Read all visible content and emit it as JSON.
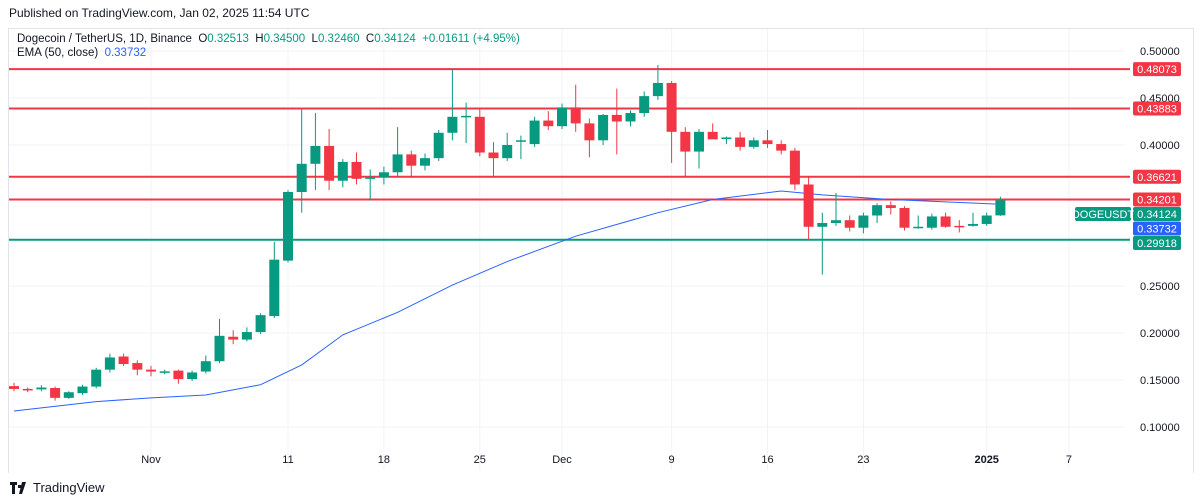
{
  "header": {
    "published": "Published on TradingView.com, Jan 02, 2025 11:54 UTC"
  },
  "legend": {
    "symbol": "Dogecoin / TetherUS, 1D, Binance",
    "o_label": "O",
    "o": "0.32513",
    "h_label": "H",
    "h": "0.34500",
    "l_label": "L",
    "l": "0.32460",
    "c_label": "C",
    "c": "0.34124",
    "change": "+0.01611 (+4.95%)",
    "ema_label": "EMA (50, close)",
    "ema_value": "0.33732"
  },
  "footer": {
    "brand": "TradingView",
    "logo_icon": "tradingview-logo-icon"
  },
  "chart_data": {
    "type": "candlestick",
    "symbol_tag": "DOGEUSDT",
    "colors": {
      "up": "#089981",
      "down": "#f23645",
      "ema": "#2962ff",
      "resistance": "#f23645",
      "support": "#089981"
    },
    "ylim": [
      0.08,
      0.515
    ],
    "y_ticks": [
      "0.50000",
      "0.45000",
      "0.40000",
      "0.25000",
      "0.20000",
      "0.15000",
      "0.10000"
    ],
    "x_ticks": [
      {
        "date": "2024-11-01",
        "label": "Nov"
      },
      {
        "date": "2024-11-11",
        "label": "11"
      },
      {
        "date": "2024-11-18",
        "label": "18"
      },
      {
        "date": "2024-11-25",
        "label": "25"
      },
      {
        "date": "2024-12-01",
        "label": "Dec"
      },
      {
        "date": "2024-12-09",
        "label": "9"
      },
      {
        "date": "2024-12-16",
        "label": "16"
      },
      {
        "date": "2024-12-23",
        "label": "23"
      },
      {
        "date": "2025-01-01",
        "label": "2025"
      },
      {
        "date": "2025-01-07",
        "label": "7"
      }
    ],
    "start_date": "2024-10-22",
    "ohlc": [
      [
        0.1435,
        0.147,
        0.138,
        0.1405
      ],
      [
        0.1405,
        0.142,
        0.137,
        0.1402
      ],
      [
        0.14,
        0.1445,
        0.138,
        0.142
      ],
      [
        0.1415,
        0.143,
        0.128,
        0.131
      ],
      [
        0.131,
        0.138,
        0.13,
        0.137
      ],
      [
        0.136,
        0.145,
        0.134,
        0.143
      ],
      [
        0.143,
        0.163,
        0.141,
        0.161
      ],
      [
        0.161,
        0.178,
        0.158,
        0.174
      ],
      [
        0.175,
        0.178,
        0.165,
        0.167
      ],
      [
        0.168,
        0.171,
        0.155,
        0.161
      ],
      [
        0.161,
        0.165,
        0.154,
        0.159
      ],
      [
        0.159,
        0.161,
        0.156,
        0.1592
      ],
      [
        0.16,
        0.161,
        0.146,
        0.151
      ],
      [
        0.151,
        0.16,
        0.149,
        0.158
      ],
      [
        0.159,
        0.176,
        0.157,
        0.17
      ],
      [
        0.17,
        0.215,
        0.168,
        0.197
      ],
      [
        0.196,
        0.203,
        0.188,
        0.193
      ],
      [
        0.193,
        0.206,
        0.191,
        0.201
      ],
      [
        0.201,
        0.221,
        0.199,
        0.219
      ],
      [
        0.218,
        0.297,
        0.216,
        0.278
      ],
      [
        0.277,
        0.352,
        0.275,
        0.35
      ],
      [
        0.35,
        0.438,
        0.328,
        0.38
      ],
      [
        0.38,
        0.434,
        0.352,
        0.399
      ],
      [
        0.399,
        0.417,
        0.352,
        0.362
      ],
      [
        0.362,
        0.385,
        0.355,
        0.382
      ],
      [
        0.382,
        0.392,
        0.358,
        0.364
      ],
      [
        0.364,
        0.374,
        0.341,
        0.366
      ],
      [
        0.366,
        0.377,
        0.358,
        0.371
      ],
      [
        0.371,
        0.419,
        0.366,
        0.39
      ],
      [
        0.39,
        0.394,
        0.365,
        0.378
      ],
      [
        0.378,
        0.391,
        0.373,
        0.386
      ],
      [
        0.386,
        0.416,
        0.383,
        0.413
      ],
      [
        0.413,
        0.48,
        0.405,
        0.43
      ],
      [
        0.43,
        0.445,
        0.402,
        0.431
      ],
      [
        0.43,
        0.438,
        0.388,
        0.392
      ],
      [
        0.392,
        0.403,
        0.365,
        0.386
      ],
      [
        0.386,
        0.413,
        0.383,
        0.4
      ],
      [
        0.404,
        0.41,
        0.385,
        0.405
      ],
      [
        0.401,
        0.43,
        0.398,
        0.426
      ],
      [
        0.426,
        0.436,
        0.416,
        0.42
      ],
      [
        0.42,
        0.444,
        0.417,
        0.44
      ],
      [
        0.44,
        0.464,
        0.414,
        0.423
      ],
      [
        0.423,
        0.428,
        0.387,
        0.405
      ],
      [
        0.405,
        0.433,
        0.4,
        0.432
      ],
      [
        0.432,
        0.46,
        0.39,
        0.425
      ],
      [
        0.425,
        0.437,
        0.42,
        0.434
      ],
      [
        0.434,
        0.457,
        0.43,
        0.452
      ],
      [
        0.452,
        0.485,
        0.448,
        0.466
      ],
      [
        0.466,
        0.468,
        0.381,
        0.414
      ],
      [
        0.414,
        0.419,
        0.366,
        0.393
      ],
      [
        0.393,
        0.417,
        0.375,
        0.414
      ],
      [
        0.414,
        0.423,
        0.41,
        0.406
      ],
      [
        0.407,
        0.409,
        0.401,
        0.408
      ],
      [
        0.408,
        0.414,
        0.394,
        0.398
      ],
      [
        0.398,
        0.408,
        0.396,
        0.405
      ],
      [
        0.405,
        0.416,
        0.397,
        0.401
      ],
      [
        0.401,
        0.405,
        0.39,
        0.394
      ],
      [
        0.394,
        0.397,
        0.352,
        0.358
      ],
      [
        0.358,
        0.366,
        0.3,
        0.313
      ],
      [
        0.313,
        0.328,
        0.262,
        0.317
      ],
      [
        0.317,
        0.349,
        0.314,
        0.32
      ],
      [
        0.32,
        0.325,
        0.308,
        0.312
      ],
      [
        0.312,
        0.328,
        0.306,
        0.325
      ],
      [
        0.325,
        0.338,
        0.317,
        0.336
      ],
      [
        0.336,
        0.34,
        0.326,
        0.333
      ],
      [
        0.333,
        0.335,
        0.309,
        0.312
      ],
      [
        0.312,
        0.325,
        0.311,
        0.313
      ],
      [
        0.312,
        0.327,
        0.31,
        0.324
      ],
      [
        0.324,
        0.328,
        0.312,
        0.313
      ],
      [
        0.314,
        0.32,
        0.307,
        0.313
      ],
      [
        0.314,
        0.328,
        0.313,
        0.316
      ],
      [
        0.316,
        0.328,
        0.314,
        0.325
      ],
      [
        0.32513,
        0.345,
        0.3246,
        0.34124
      ]
    ],
    "ema": [
      [
        "2024-10-22",
        0.117
      ],
      [
        "2024-10-28",
        0.127
      ],
      [
        "2024-11-01",
        0.131
      ],
      [
        "2024-11-05",
        0.134
      ],
      [
        "2024-11-09",
        0.145
      ],
      [
        "2024-11-12",
        0.166
      ],
      [
        "2024-11-15",
        0.198
      ],
      [
        "2024-11-19",
        0.222
      ],
      [
        "2024-11-23",
        0.251
      ],
      [
        "2024-11-27",
        0.276
      ],
      [
        "2024-12-02",
        0.303
      ],
      [
        "2024-12-08",
        0.328
      ],
      [
        "2024-12-12",
        0.342
      ],
      [
        "2024-12-17",
        0.351
      ],
      [
        "2024-12-20",
        0.347
      ],
      [
        "2024-12-25",
        0.342
      ],
      [
        "2025-01-02",
        0.337
      ]
    ],
    "levels": [
      {
        "value": 0.48073,
        "label": "0.48073",
        "kind": "resistance"
      },
      {
        "value": 0.43883,
        "label": "0.43883",
        "kind": "resistance"
      },
      {
        "value": 0.36621,
        "label": "0.36621",
        "kind": "resistance"
      },
      {
        "value": 0.34201,
        "label": "0.34201",
        "kind": "resistance"
      },
      {
        "value": 0.29918,
        "label": "0.29918",
        "kind": "support"
      }
    ],
    "last_price": {
      "value": 0.34124,
      "label": "0.34124"
    },
    "ema_last": {
      "value": 0.33732,
      "label": "0.33732"
    }
  }
}
